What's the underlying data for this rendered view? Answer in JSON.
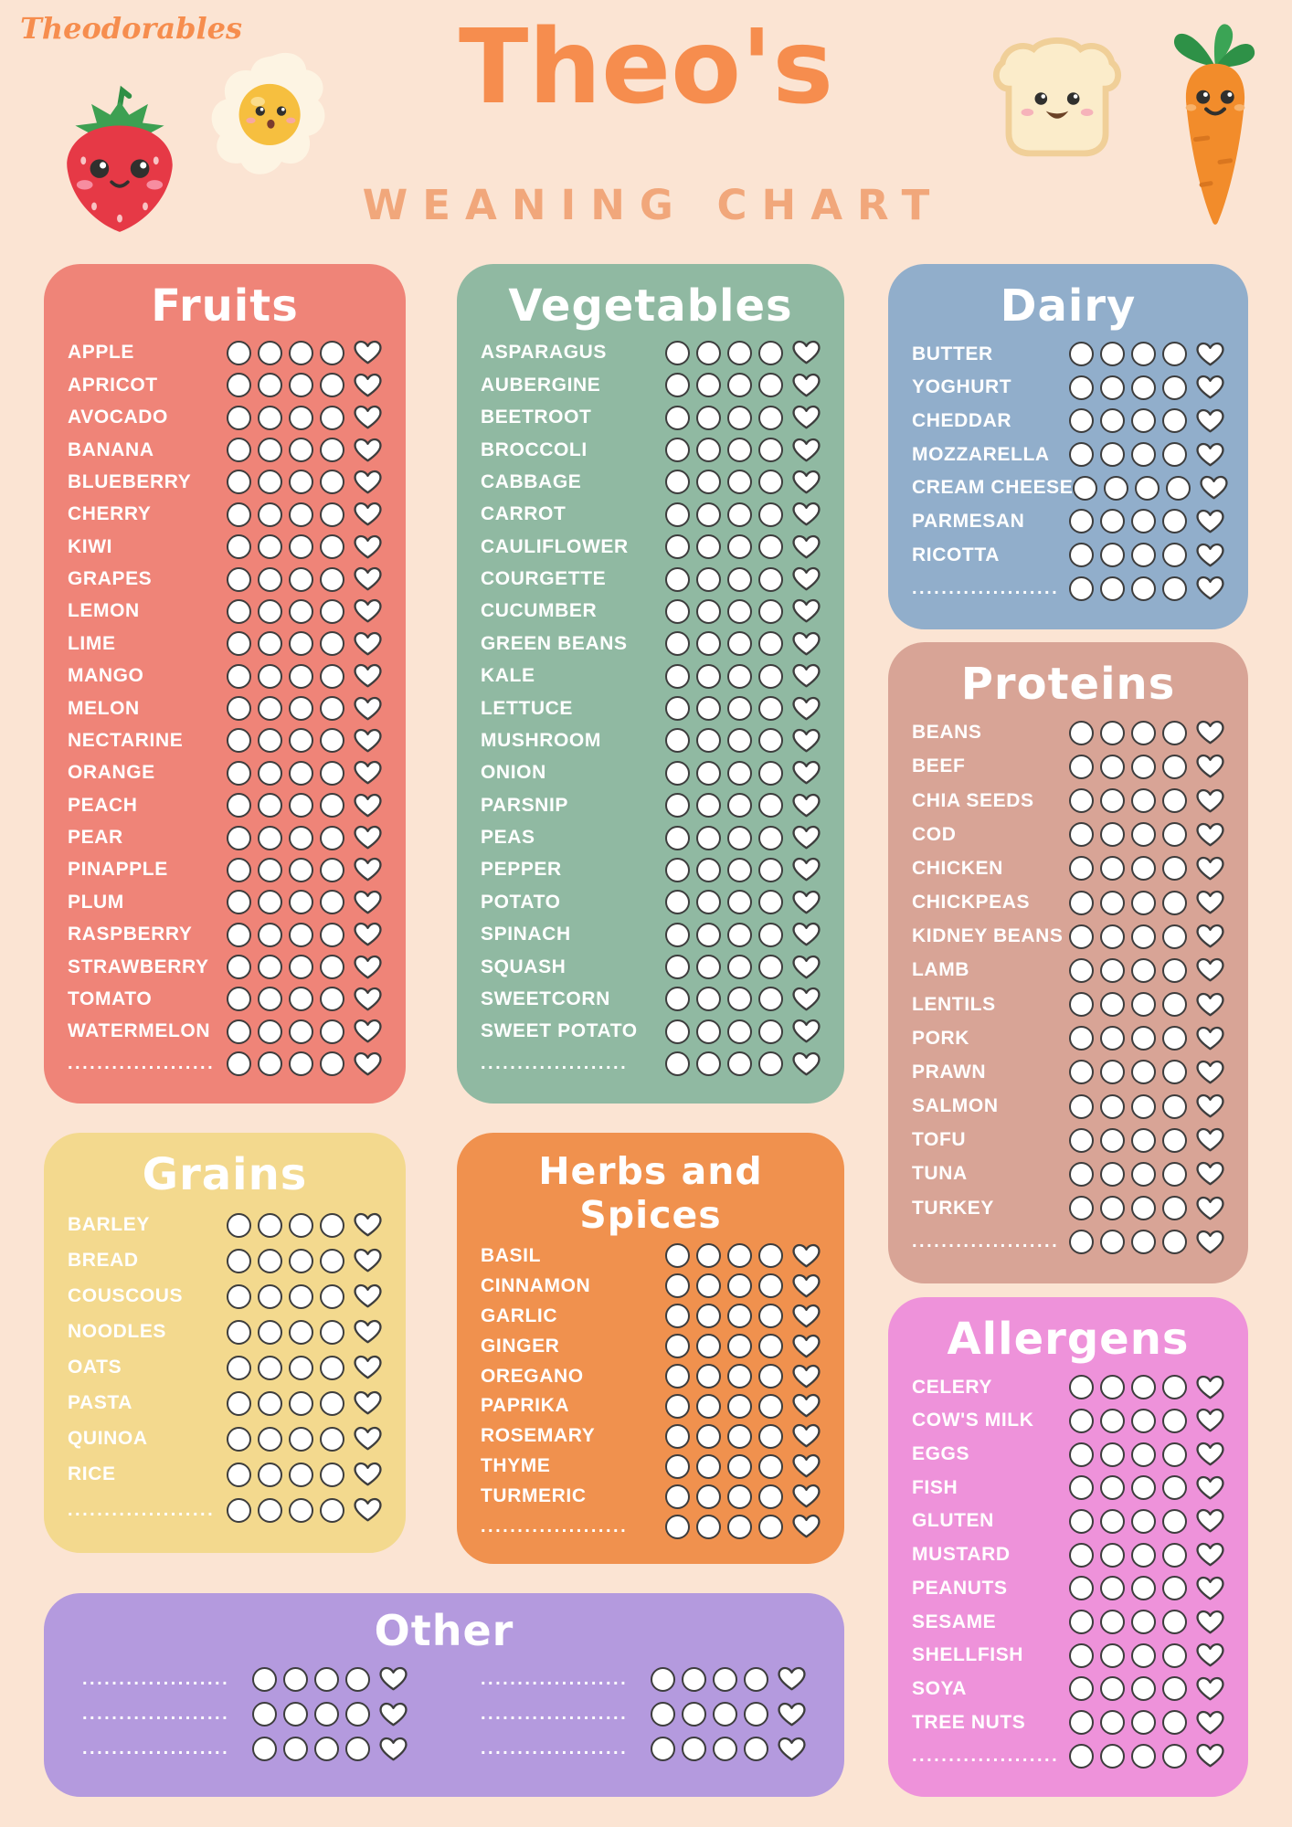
{
  "header": {
    "logo": "Theodorables",
    "title": "Theo's",
    "subtitle": "WEANING CHART",
    "decorations": [
      "strawberry",
      "fried-egg",
      "toast",
      "carrot"
    ]
  },
  "tracker": {
    "circles": 4,
    "hearts": 1
  },
  "placeholder_dots": "....................",
  "colors": {
    "background": "#fbe4d3",
    "title": "#f68d4e",
    "subtitle": "#f1a77b",
    "tracker_outline": "#3d3d3d",
    "section_text": "#ffffff",
    "fruits": "#ef8478",
    "vegetables": "#90b9a2",
    "dairy": "#91aecb",
    "proteins": "#d8a496",
    "grains": "#f3d98e",
    "herbs": "#f0914e",
    "allergens": "#ee92da",
    "other": "#b49ade"
  },
  "icons": {
    "tracker_try": "circle-outline",
    "tracker_love": "heart-outline"
  },
  "sections": [
    {
      "id": "fruits",
      "title": "Fruits",
      "items": [
        "APPLE",
        "APRICOT",
        "AVOCADO",
        "BANANA",
        "BLUEBERRY",
        "CHERRY",
        "KIWI",
        "GRAPES",
        "LEMON",
        "LIME",
        "MANGO",
        "MELON",
        "NECTARINE",
        "ORANGE",
        "PEACH",
        "PEAR",
        "PINAPPLE",
        "PLUM",
        "RASPBERRY",
        "STRAWBERRY",
        "TOMATO",
        "WATERMELON"
      ],
      "dotted_rows": 1
    },
    {
      "id": "vegetables",
      "title": "Vegetables",
      "items": [
        "ASPARAGUS",
        "AUBERGINE",
        "BEETROOT",
        "BROCCOLI",
        "CABBAGE",
        "CARROT",
        "CAULIFLOWER",
        "COURGETTE",
        "CUCUMBER",
        "GREEN BEANS",
        "KALE",
        "LETTUCE",
        "MUSHROOM",
        "ONION",
        "PARSNIP",
        "PEAS",
        "PEPPER",
        "POTATO",
        "SPINACH",
        "SQUASH",
        "SWEETCORN",
        "SWEET POTATO"
      ],
      "dotted_rows": 1
    },
    {
      "id": "dairy",
      "title": "Dairy",
      "items": [
        "BUTTER",
        "YOGHURT",
        "CHEDDAR",
        "MOZZARELLA",
        "CREAM CHEESE",
        "PARMESAN",
        "RICOTTA"
      ],
      "dotted_rows": 1
    },
    {
      "id": "proteins",
      "title": "Proteins",
      "items": [
        "BEANS",
        "BEEF",
        "CHIA SEEDS",
        "COD",
        "CHICKEN",
        "CHICKPEAS",
        "KIDNEY BEANS",
        "LAMB",
        "LENTILS",
        "PORK",
        "PRAWN",
        "SALMON",
        "TOFU",
        "TUNA",
        "TURKEY"
      ],
      "dotted_rows": 1
    },
    {
      "id": "grains",
      "title": "Grains",
      "items": [
        "BARLEY",
        "BREAD",
        "COUSCOUS",
        "NOODLES",
        "OATS",
        "PASTA",
        "QUINOA",
        "RICE"
      ],
      "dotted_rows": 1
    },
    {
      "id": "herbs",
      "title": "Herbs and Spices",
      "items": [
        "BASIL",
        "CINNAMON",
        "GARLIC",
        "GINGER",
        "OREGANO",
        "PAPRIKA",
        "ROSEMARY",
        "THYME",
        "TURMERIC"
      ],
      "dotted_rows": 1
    },
    {
      "id": "allergens",
      "title": "Allergens",
      "items": [
        "CELERY",
        "COW'S MILK",
        "EGGS",
        "FISH",
        "GLUTEN",
        "MUSTARD",
        "PEANUTS",
        "SESAME",
        "SHELLFISH",
        "SOYA",
        "TREE NUTS"
      ],
      "dotted_rows": 1
    },
    {
      "id": "other",
      "title": "Other",
      "items": [],
      "dotted_rows": 6,
      "columns": 2
    }
  ]
}
